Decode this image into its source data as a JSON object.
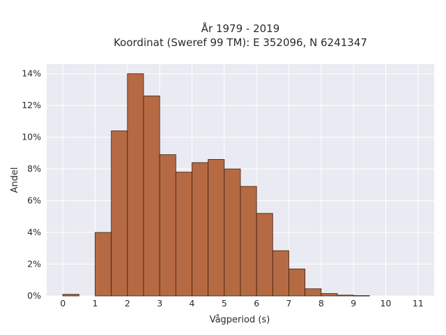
{
  "chart_data": {
    "type": "bar",
    "title_line1": "År 1979 - 2019",
    "title_line2": "Koordinat (Sweref 99 TM): E 352096, N 6241347",
    "xlabel": "Vågperiod (s)",
    "ylabel": "Andel",
    "bin_width": 0.5,
    "x": [
      0,
      0.5,
      1,
      1.5,
      2,
      2.5,
      3,
      3.5,
      4,
      4.5,
      5,
      5.5,
      6,
      6.5,
      7,
      7.5,
      8,
      8.5,
      9,
      9.5,
      10,
      10.5,
      11
    ],
    "values": [
      0.1,
      0,
      4.0,
      10.4,
      14.0,
      12.6,
      8.9,
      7.8,
      8.4,
      8.6,
      8.0,
      6.9,
      5.2,
      2.85,
      1.7,
      0.45,
      0.15,
      0.05,
      0.02,
      0,
      0,
      0,
      0
    ],
    "xlim": [
      -0.5,
      11.5
    ],
    "ylim": [
      0,
      14.6
    ],
    "xticks": [
      0,
      1,
      2,
      3,
      4,
      5,
      6,
      7,
      8,
      9,
      10,
      11
    ],
    "yticks": [
      0,
      2,
      4,
      6,
      8,
      10,
      12,
      14
    ],
    "ytick_labels": [
      "0%",
      "2%",
      "4%",
      "6%",
      "8%",
      "10%",
      "12%",
      "14%"
    ],
    "grid": true,
    "bar_color": "#b56a43",
    "bar_edge_color": "#3a1e10",
    "plot_background": "#eaeaf2"
  }
}
